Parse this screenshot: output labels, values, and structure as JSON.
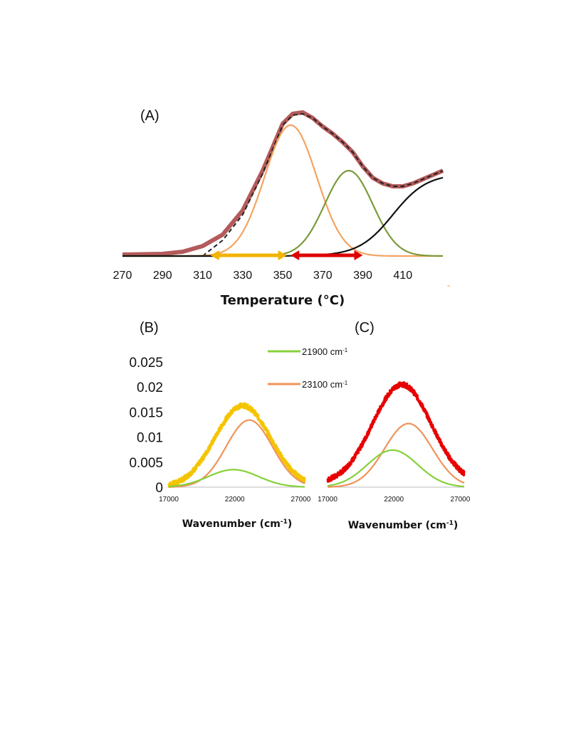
{
  "chart_data": [
    {
      "panel": "(A)",
      "type": "line",
      "xlabel": "Temperature (°C)",
      "ylabel": "",
      "xlim": [
        270,
        430
      ],
      "ylim": [
        0,
        1.0
      ],
      "xticks": [
        "270",
        "290",
        "310",
        "330",
        "350",
        "370",
        "390",
        "410"
      ],
      "grid": false,
      "series": [
        {
          "role": "measured",
          "color": "#b35a5a",
          "x": [
            270,
            290,
            300,
            310,
            320,
            330,
            340,
            350,
            355,
            360,
            365,
            370,
            375,
            380,
            385,
            390,
            395,
            400,
            405,
            410,
            415,
            420,
            425,
            430
          ],
          "y": [
            0.01,
            0.015,
            0.03,
            0.07,
            0.15,
            0.32,
            0.6,
            0.93,
            1.0,
            1.01,
            0.97,
            0.91,
            0.86,
            0.8,
            0.73,
            0.63,
            0.55,
            0.51,
            0.49,
            0.49,
            0.51,
            0.54,
            0.57,
            0.6
          ]
        },
        {
          "role": "fit-sum",
          "color": "#222222",
          "dashed": true,
          "x": [
            310,
            320,
            330,
            340,
            350,
            355,
            360,
            365,
            370,
            375,
            380,
            385,
            390,
            395,
            400,
            405,
            410,
            415,
            420,
            425,
            430
          ],
          "y": [
            0.0,
            0.11,
            0.29,
            0.58,
            0.92,
            0.99,
            1.0,
            0.97,
            0.91,
            0.86,
            0.8,
            0.73,
            0.63,
            0.55,
            0.51,
            0.49,
            0.49,
            0.51,
            0.54,
            0.57,
            0.6
          ]
        },
        {
          "role": "component-1",
          "color": "#f4a460",
          "gaussian": {
            "amp": 0.92,
            "center": 354,
            "sigma": 13
          }
        },
        {
          "role": "component-2",
          "color": "#7b9a3c",
          "gaussian": {
            "amp": 0.6,
            "center": 383,
            "sigma": 12
          }
        },
        {
          "role": "component-3",
          "color": "#111111",
          "sigmoid": {
            "amp": 0.58,
            "center": 405,
            "width": 8.5
          }
        }
      ],
      "annotations": [
        {
          "type": "double-arrow",
          "color": "#f2b400",
          "from": 314,
          "to": 352
        },
        {
          "type": "double-arrow",
          "color": "#e00000",
          "from": 354,
          "to": 390
        }
      ]
    },
    {
      "panel": "(B)",
      "type": "line",
      "xlabel": "Wavenumber (cm",
      "xlabel_sup": "-1",
      "xlabel_tail": ")",
      "ylabel": "",
      "xlim": [
        17000,
        27300
      ],
      "ylim": [
        0,
        0.025
      ],
      "xticks": [
        "17000",
        "22000",
        "27000"
      ],
      "yticks": [
        "0",
        "0.005",
        "0.01",
        "0.015",
        "0.02",
        "0.025"
      ],
      "grid": false,
      "series": [
        {
          "role": "measured",
          "color": "#f5c400",
          "noisy": true,
          "gaussian": {
            "amp": 0.0163,
            "center": 22600,
            "sigma": 2100
          }
        },
        {
          "name": "23100 cm",
          "color": "#f0935a",
          "gaussian": {
            "amp": 0.0134,
            "center": 23100,
            "sigma": 1750
          }
        },
        {
          "name": "21900 cm",
          "color": "#86d13a",
          "gaussian": {
            "amp": 0.0035,
            "center": 21900,
            "sigma": 1900
          }
        }
      ]
    },
    {
      "panel": "(C)",
      "type": "line",
      "xlabel": "Wavenumber (cm",
      "xlabel_sup": "-1",
      "xlabel_tail": ")",
      "ylabel": "",
      "xlim": [
        17000,
        27300
      ],
      "ylim": [
        0,
        0.025
      ],
      "xticks": [
        "17000",
        "22000",
        "27000"
      ],
      "grid": false,
      "series": [
        {
          "role": "measured",
          "color": "#e80000",
          "noisy": true,
          "gaussian": {
            "amp": 0.0198,
            "center": 22600,
            "sigma": 2200
          },
          "baseline": 0.0007
        },
        {
          "name": "23100 cm",
          "color": "#f0935a",
          "gaussian": {
            "amp": 0.0127,
            "center": 23100,
            "sigma": 1800
          }
        },
        {
          "name": "21900 cm",
          "color": "#86d13a",
          "gaussian": {
            "amp": 0.0074,
            "center": 21900,
            "sigma": 1900
          }
        }
      ]
    }
  ],
  "legend": {
    "placement": "between-panels-top",
    "items": [
      {
        "label": "21900 cm",
        "sup": "-1",
        "color": "#86d13a"
      },
      {
        "label": "23100 cm",
        "sup": "-1",
        "color": "#f0935a"
      }
    ]
  },
  "extra_tick": {
    "text": "-",
    "color": "#f08a24"
  }
}
